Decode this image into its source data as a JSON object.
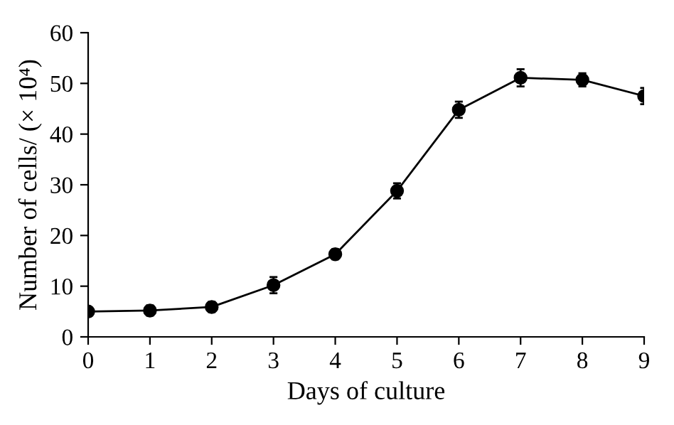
{
  "chart_data": {
    "type": "line",
    "xlabel": "Days of culture",
    "ylabel": "Number of cells/ (× 10⁴)",
    "x": [
      0,
      1,
      2,
      3,
      4,
      5,
      6,
      7,
      8,
      9
    ],
    "series": [
      {
        "color": "#000000",
        "values": [
          5.0,
          5.2,
          5.9,
          10.2,
          16.3,
          28.8,
          44.8,
          51.1,
          50.7,
          47.5
        ],
        "errors": [
          0.6,
          1.0,
          1.0,
          1.6,
          1.0,
          1.5,
          1.6,
          1.7,
          1.3,
          1.6
        ]
      }
    ],
    "xlim": [
      0,
      9
    ],
    "xticks": [
      0,
      1,
      2,
      3,
      4,
      5,
      6,
      7,
      8,
      9
    ],
    "ylim": [
      0,
      60
    ],
    "yticks": [
      0,
      10,
      20,
      30,
      40,
      50,
      60
    ],
    "grid": false,
    "legend": false,
    "marker": "circle",
    "line_style": "solid"
  }
}
